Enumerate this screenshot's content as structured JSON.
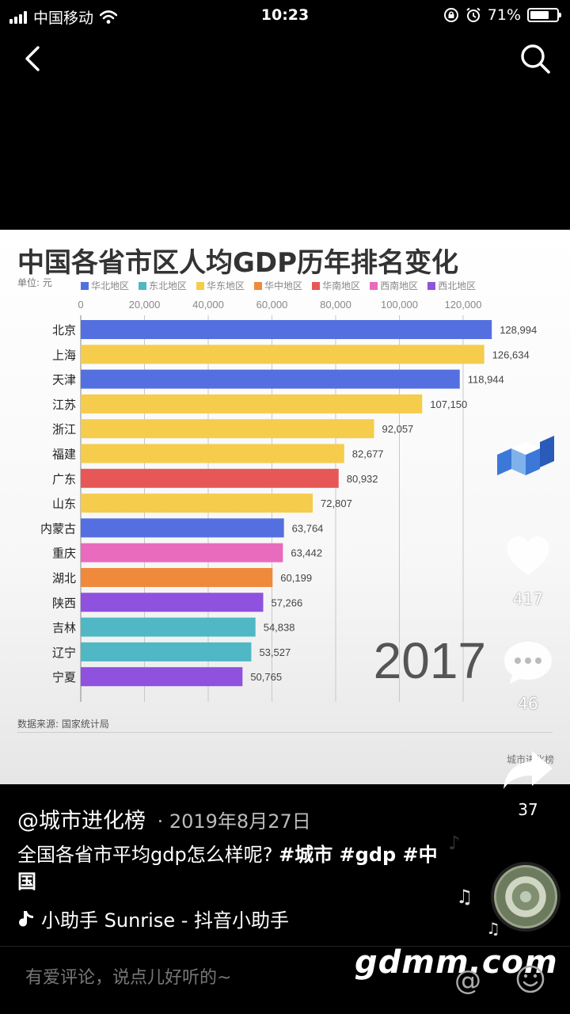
{
  "status_bar": {
    "carrier": "中国移动",
    "time": "10:23",
    "battery": "71%",
    "battery_level": 0.71
  },
  "chart_data": {
    "type": "bar",
    "orientation": "horizontal",
    "title": "中国各省市区人均GDP历年排名变化",
    "unit_label": "单位: 元",
    "xlim": [
      0,
      130000
    ],
    "ticks": [
      "0",
      "20,000",
      "40,000",
      "60,000",
      "80,000",
      "100,000",
      "120,000"
    ],
    "tick_values": [
      0,
      20000,
      40000,
      60000,
      80000,
      100000,
      120000
    ],
    "grid": true,
    "legend_position": "top",
    "legend": [
      {
        "name": "华北地区",
        "color": "#5470e0"
      },
      {
        "name": "东北地区",
        "color": "#4fb8c4"
      },
      {
        "name": "华东地区",
        "color": "#f5cc4c"
      },
      {
        "name": "华中地区",
        "color": "#ef8a3c"
      },
      {
        "name": "华南地区",
        "color": "#e85757"
      },
      {
        "name": "西南地区",
        "color": "#e96bbd"
      },
      {
        "name": "西北地区",
        "color": "#8e52de"
      }
    ],
    "categories": [
      "北京",
      "上海",
      "天津",
      "江苏",
      "浙江",
      "福建",
      "广东",
      "山东",
      "内蒙古",
      "重庆",
      "湖北",
      "陕西",
      "吉林",
      "辽宁",
      "宁夏"
    ],
    "values": [
      128994,
      126634,
      118944,
      107150,
      92057,
      82677,
      80932,
      72807,
      63764,
      63442,
      60199,
      57266,
      54838,
      53527,
      50765
    ],
    "value_labels": [
      "128,994",
      "126,634",
      "118,944",
      "107,150",
      "92,057",
      "82,677",
      "80,932",
      "72,807",
      "63,764",
      "63,442",
      "60,199",
      "57,266",
      "54,838",
      "53,527",
      "50,765"
    ],
    "regions": [
      "华北地区",
      "华东地区",
      "华北地区",
      "华东地区",
      "华东地区",
      "华东地区",
      "华南地区",
      "华东地区",
      "华北地区",
      "西南地区",
      "华中地区",
      "西北地区",
      "东北地区",
      "东北地区",
      "西北地区"
    ],
    "year": "2017",
    "source": "数据来源: 国家统计局",
    "watermark": "城市进化榜"
  },
  "actions": {
    "likes": "417",
    "comments": "46",
    "shares": "37"
  },
  "post": {
    "author": "@城市进化榜",
    "date": "· 2019年8月27日",
    "caption_text": "全国各省市平均gdp怎么样呢?",
    "tags": "#城市 #gdp #中国",
    "music": "小助手    Sunrise - 抖音小助手"
  },
  "comment_bar": {
    "placeholder": "有爱评论，说点儿好听的~",
    "at_symbol": "@"
  },
  "brand_watermark": "gdmm.com",
  "icons": {
    "back": "chevron-left-icon",
    "search": "search-icon",
    "like": "heart-icon",
    "comment": "comment-icon",
    "share": "share-icon",
    "music": "music-note-icon",
    "emoji": "emoji-icon"
  }
}
